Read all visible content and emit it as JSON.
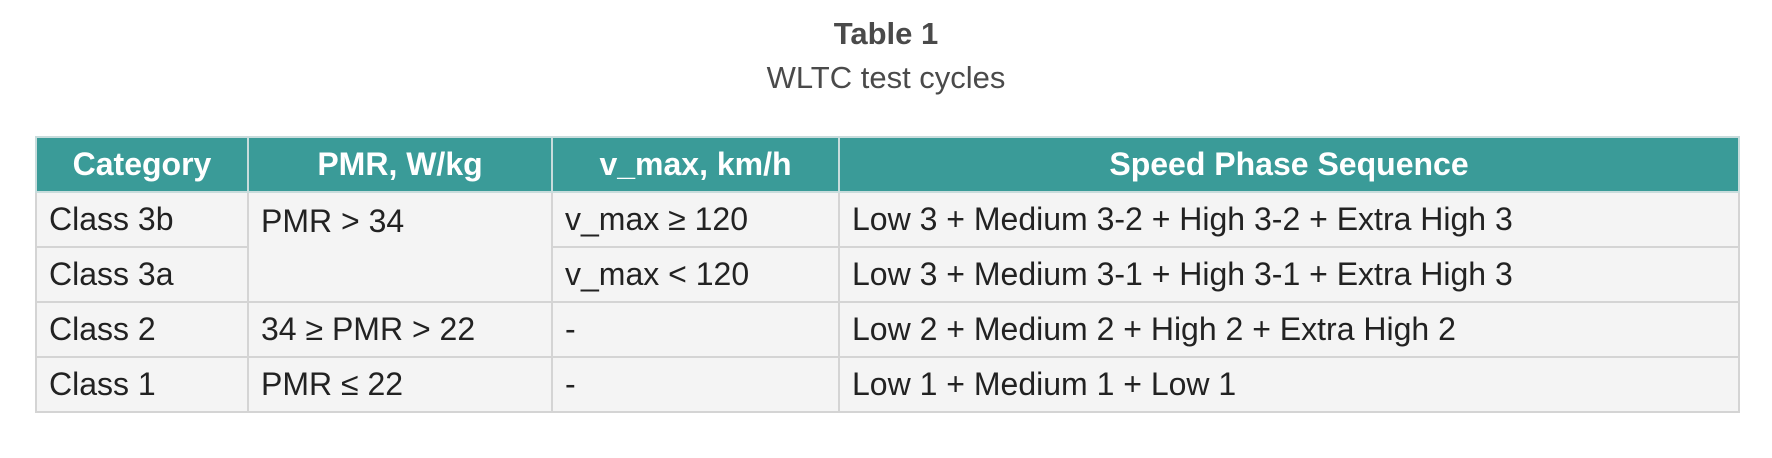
{
  "caption": {
    "title": "Table 1",
    "subtitle": "WLTC test cycles"
  },
  "table": {
    "headers": [
      "Category",
      "PMR, W/kg",
      "v_max, km/h",
      "Speed Phase Sequence"
    ],
    "rows": [
      {
        "category": "Class 3b",
        "pmr": "PMR > 34",
        "vmax": "v_max ≥ 120",
        "sequence": "Low 3 + Medium 3-2 + High 3-2 + Extra High 3"
      },
      {
        "category": "Class 3a",
        "pmr": "",
        "vmax": "v_max < 120",
        "sequence": "Low 3 + Medium 3-1 + High 3-1 + Extra High 3"
      },
      {
        "category": "Class 2",
        "pmr": "34 ≥ PMR > 22",
        "vmax": "-",
        "sequence": "Low 2 + Medium 2 + High 2 + Extra High 2"
      },
      {
        "category": "Class 1",
        "pmr": "PMR ≤ 22",
        "vmax": "-",
        "sequence": "Low 1 + Medium 1 + Low 1"
      }
    ]
  },
  "colors": {
    "header_bg": "#3a9b98",
    "row_bg": "#f4f4f4"
  }
}
